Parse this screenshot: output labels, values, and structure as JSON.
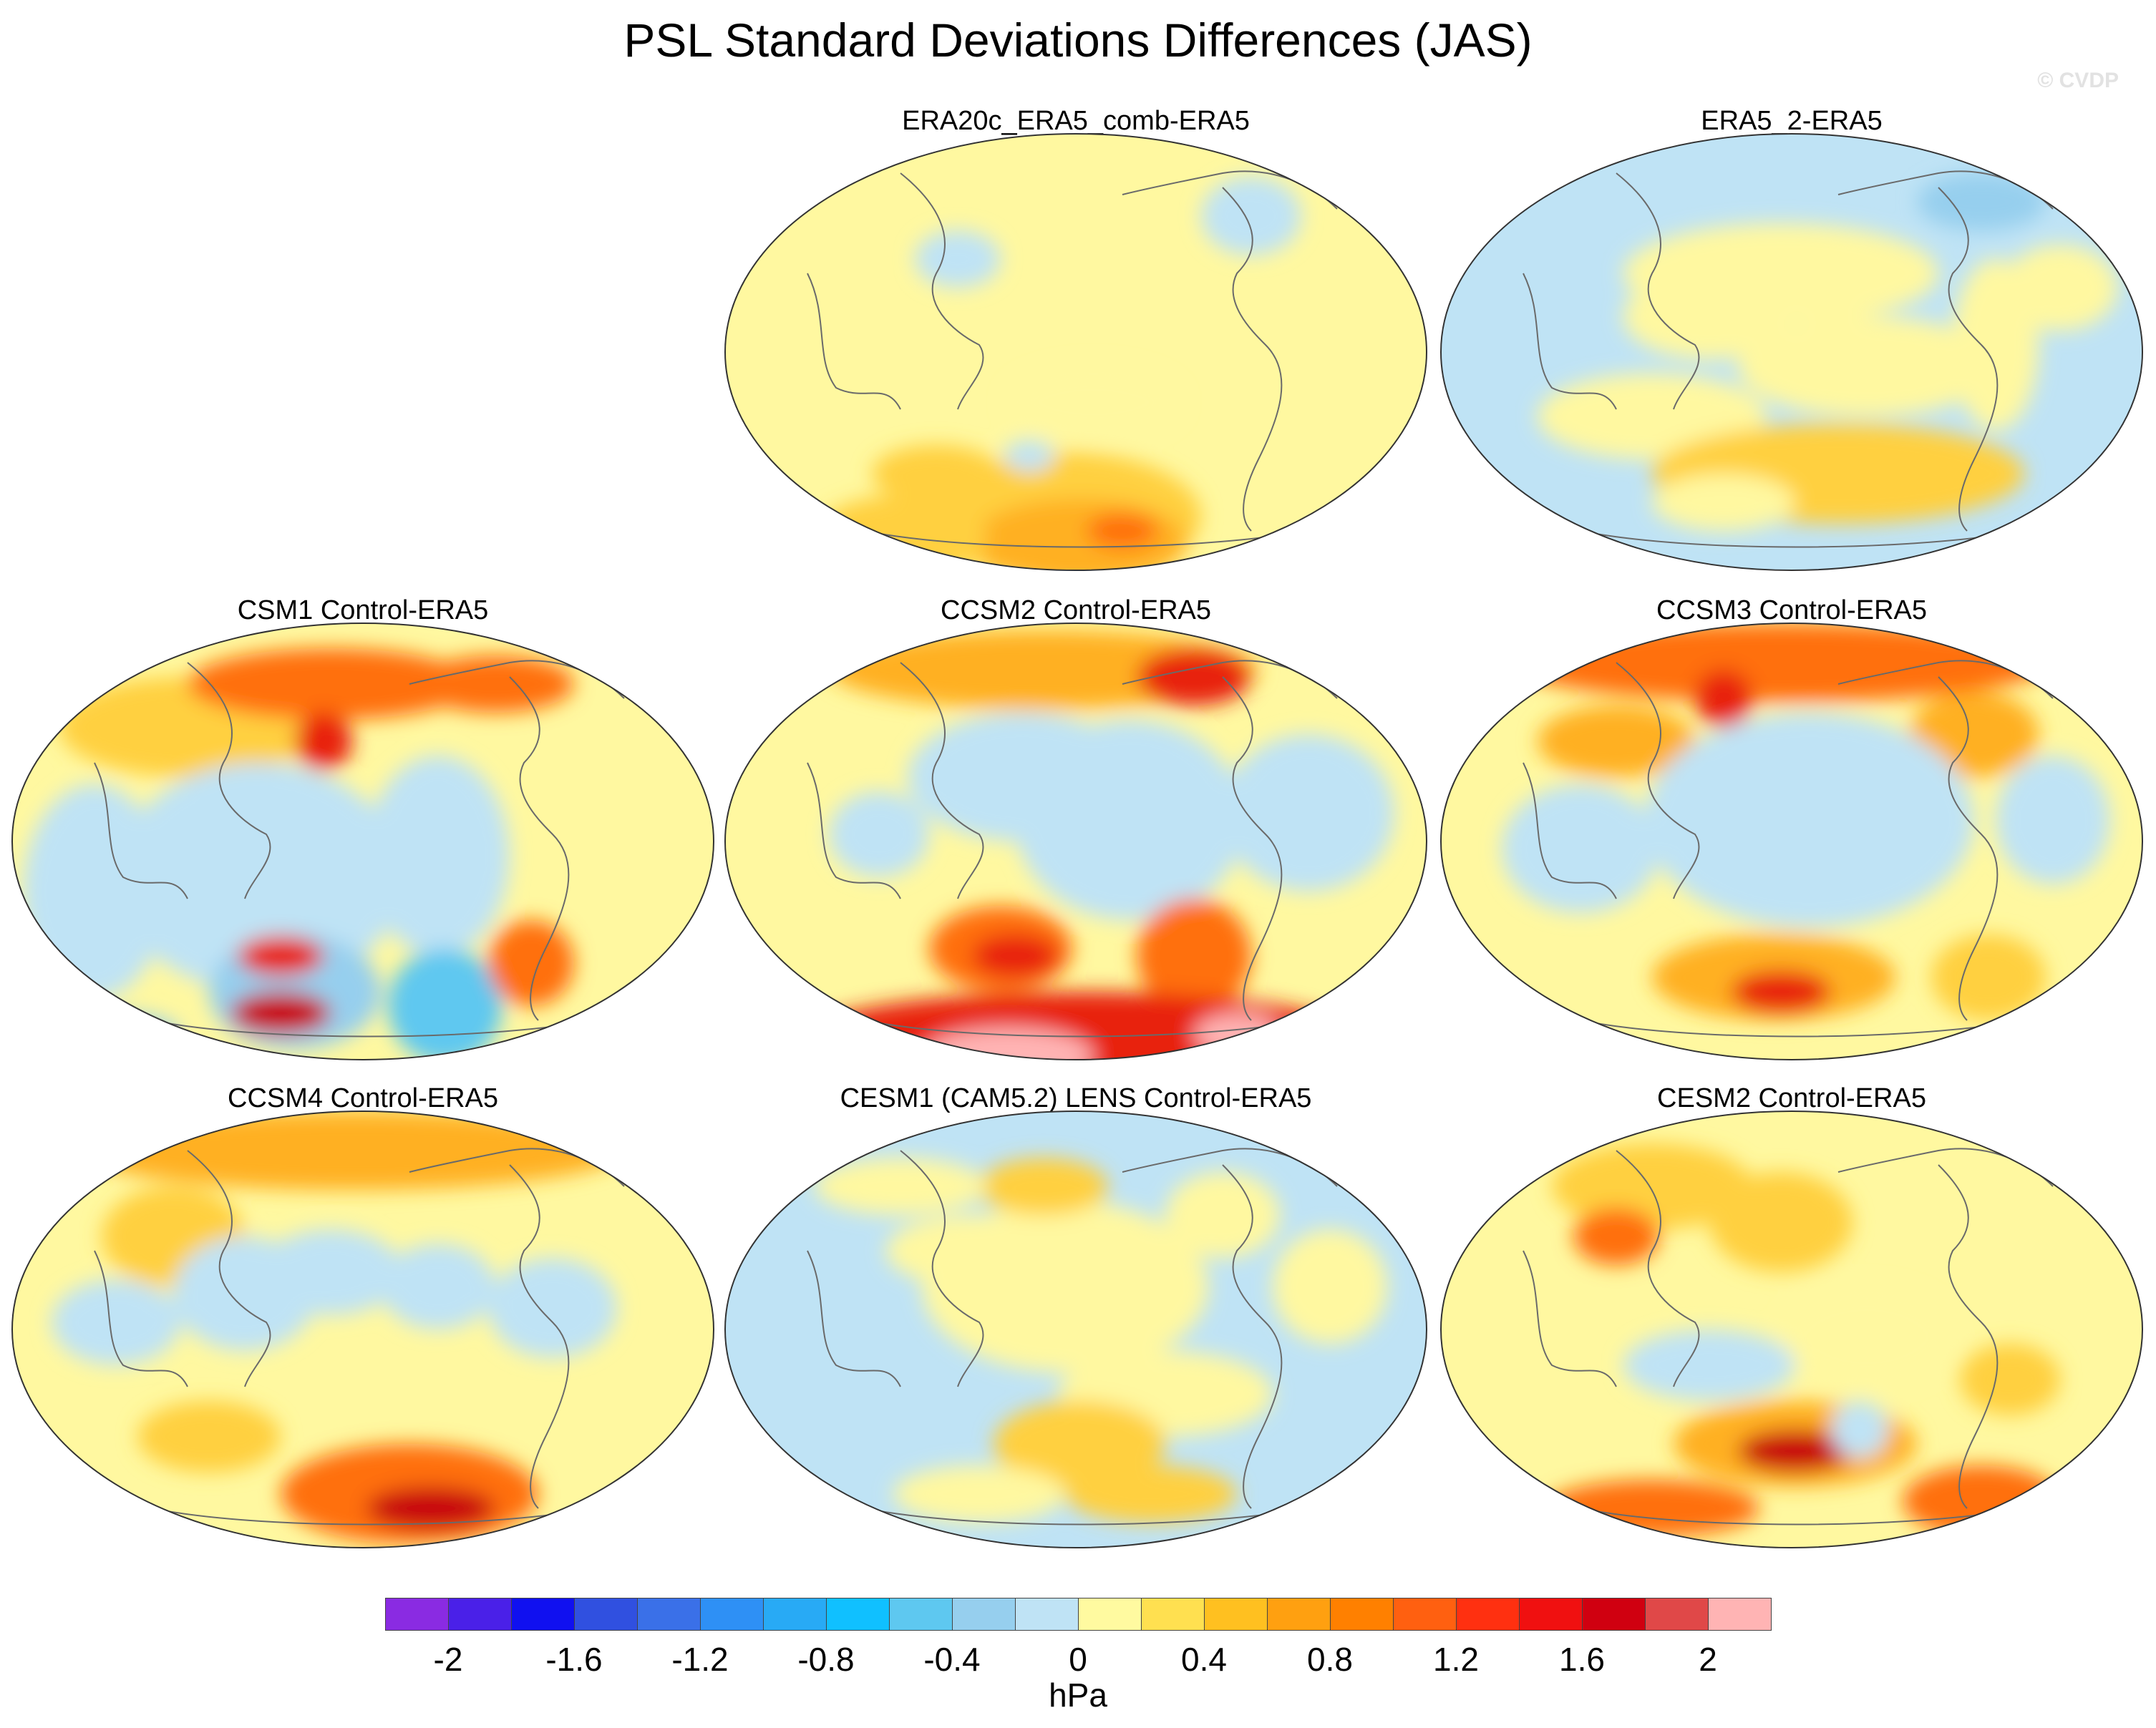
{
  "title": "PSL Standard Deviations Differences (JAS)",
  "watermark": "© CVDP",
  "panels": [
    {
      "label": "ERA20c_ERA5_comb-ERA5",
      "pattern": "mild-warm-south"
    },
    {
      "label": "ERA5_2-ERA5",
      "pattern": "mostly-blue"
    },
    {
      "label": "CSM1 Control-ERA5",
      "pattern": "mixed-blue-south"
    },
    {
      "label": "CCSM2 Control-ERA5",
      "pattern": "strong-red-south"
    },
    {
      "label": "CCSM3 Control-ERA5",
      "pattern": "warm-north-south"
    },
    {
      "label": "CCSM4 Control-ERA5",
      "pattern": "warm-south-east"
    },
    {
      "label": "CESM1 (CAM5.2) LENS Control-ERA5",
      "pattern": "mostly-blue-mild"
    },
    {
      "label": "CESM2 Control-ERA5",
      "pattern": "warm-mixed"
    }
  ],
  "colorbar": {
    "colors": [
      "#8a2be2",
      "#4a20e8",
      "#1010f0",
      "#3050e0",
      "#3a70e8",
      "#2e90f5",
      "#28aaf5",
      "#10c0ff",
      "#5ec8f0",
      "#96cfee",
      "#bfe3f5",
      "#fffaa0",
      "#ffe050",
      "#ffc020",
      "#ffa010",
      "#ff8000",
      "#ff6010",
      "#ff3010",
      "#f01010",
      "#d00010",
      "#e04848",
      "#ffb4b4"
    ],
    "tick_labels": [
      "-2",
      "-1.6",
      "-1.2",
      "-0.8",
      "-0.4",
      "0",
      "0.4",
      "0.8",
      "1.2",
      "1.6",
      "2"
    ],
    "units": "hPa"
  }
}
